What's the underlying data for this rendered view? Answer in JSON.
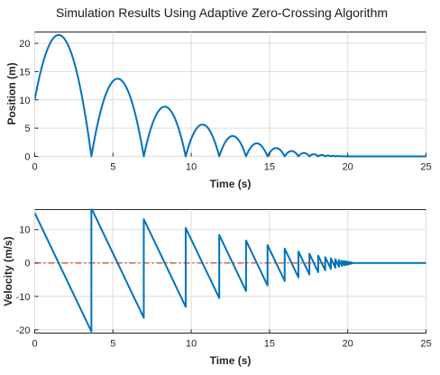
{
  "figure": {
    "title": "Simulation Results Using Adaptive Zero-Crossing Algorithm"
  },
  "colors": {
    "line": "#0072BD",
    "zero_line": "#E03C31",
    "grid": "#dcdcdc",
    "axis": "#262626"
  },
  "chart_data": [
    {
      "type": "line",
      "xlabel": "Time (s)",
      "ylabel": "Position (m)",
      "xlim": [
        0,
        25
      ],
      "ylim": [
        0,
        22
      ],
      "xticks": [
        0,
        5,
        10,
        15,
        20,
        25
      ],
      "yticks": [
        0,
        5,
        10,
        15,
        20
      ],
      "grid": true,
      "series": [
        {
          "kind": "bouncing_position",
          "initial_position": 10,
          "initial_velocity": 15,
          "gravity": 9.81,
          "restitution": 0.8,
          "bounce_times": [
            3.68,
            7.03,
            9.71,
            11.86,
            13.58,
            14.95,
            16.05,
            16.93,
            17.64,
            18.2,
            18.65,
            19.01,
            19.3,
            19.53,
            19.72,
            19.86,
            19.98,
            20.07
          ]
        }
      ]
    },
    {
      "type": "line",
      "xlabel": "Time (s)",
      "ylabel": "Velocity (m/s)",
      "xlim": [
        0,
        25
      ],
      "ylim": [
        -21,
        16
      ],
      "xticks": [
        0,
        5,
        10,
        15,
        20,
        25
      ],
      "yticks": [
        -20,
        -10,
        0,
        10
      ],
      "grid": true,
      "reference_line": {
        "y": 0,
        "style": "dash-dot"
      },
      "series": [
        {
          "kind": "bouncing_velocity",
          "initial_velocity": 15,
          "gravity": 9.81,
          "restitution": 0.8
        }
      ]
    }
  ]
}
